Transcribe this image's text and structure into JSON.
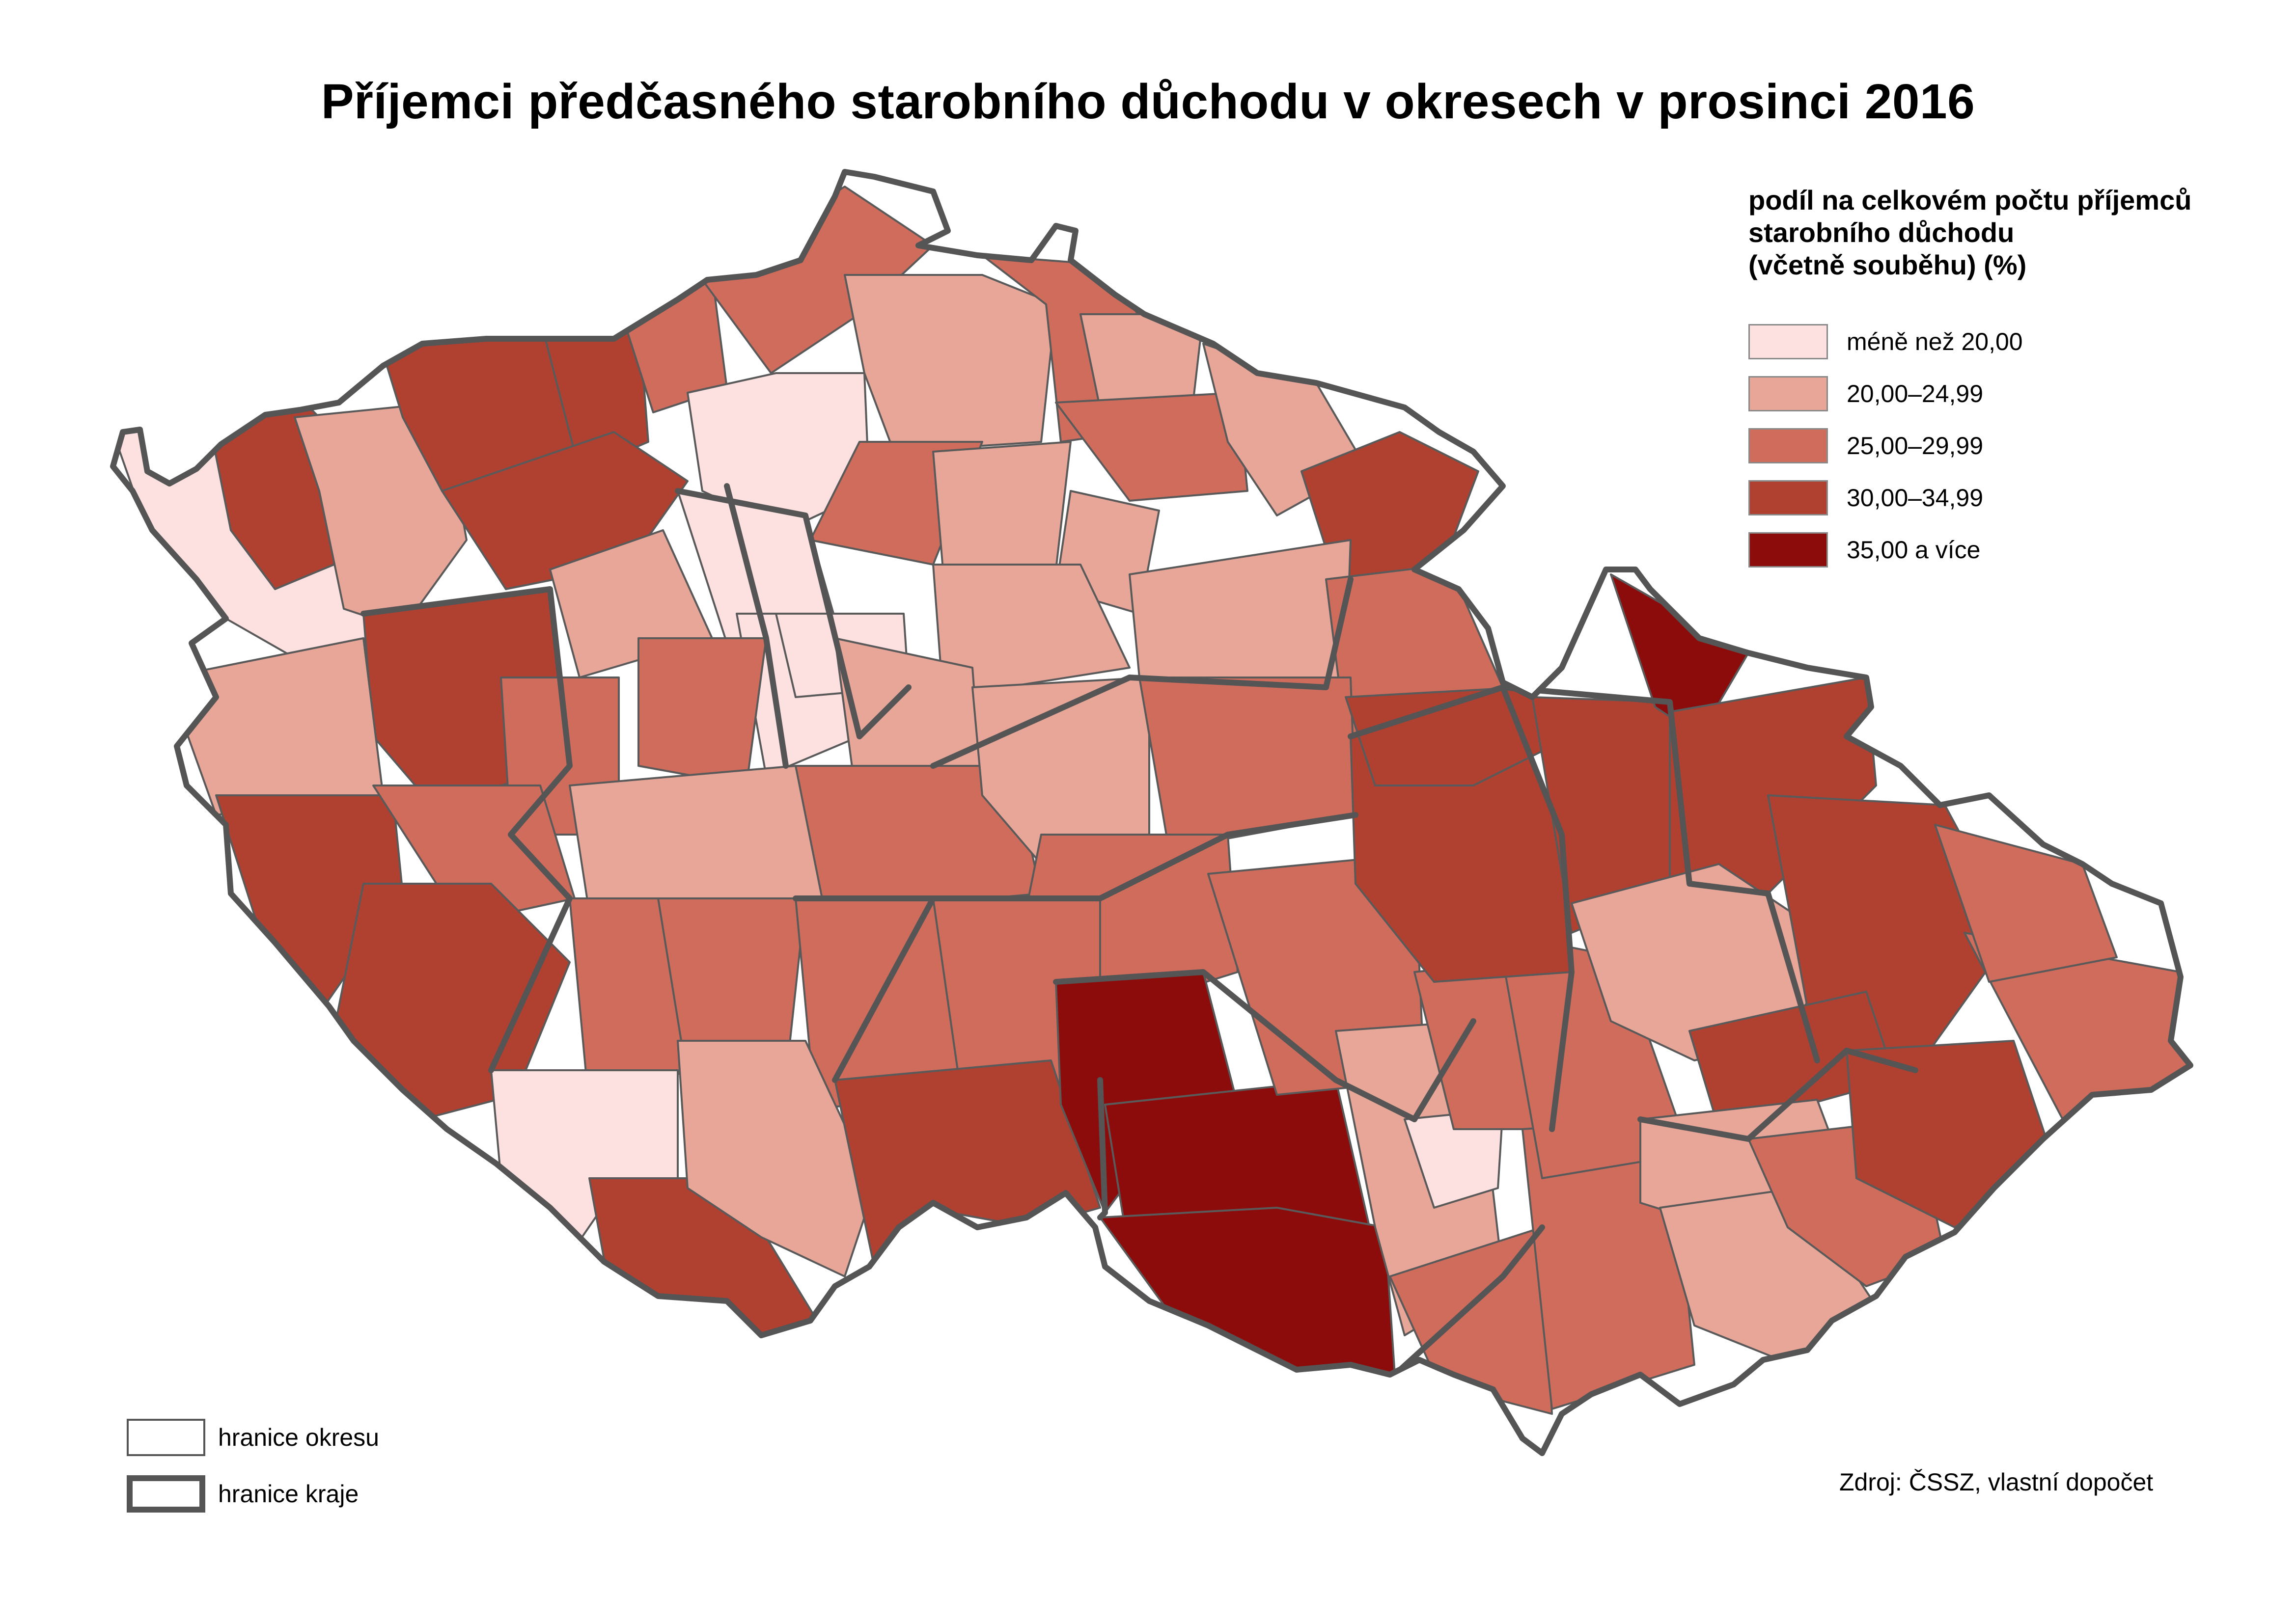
{
  "title": "Příjemci předčasného starobního důchodu v okresech v prosinci 2016",
  "legend": {
    "title_lines": [
      "podíl na celkovém počtu příjemců",
      "starobního důchodu",
      "(včetně souběhu) (%)"
    ],
    "classes": [
      {
        "label": "méně než 20,00",
        "color": "#fde0e0"
      },
      {
        "label": "20,00–24,99",
        "color": "#e8a698"
      },
      {
        "label": "25,00–29,99",
        "color": "#d06c5c"
      },
      {
        "label": "30,00–34,99",
        "color": "#b04030"
      },
      {
        "label": "35,00 a více",
        "color": "#8c0c0c"
      }
    ]
  },
  "border_legend": [
    {
      "label": "hranice okresu",
      "type": "okres"
    },
    {
      "label": "hranice kraje",
      "type": "kraj"
    }
  ],
  "source": "Zdroj: ČSSZ, vlastní dopočet",
  "colors": {
    "okres_border": "#5a5a5a",
    "kraj_border": "#555555"
  }
}
